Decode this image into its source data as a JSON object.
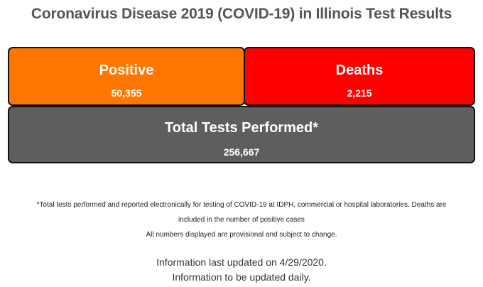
{
  "title": "Coronavirus Disease 2019 (COVID-19) in Illinois Test Results",
  "cards": {
    "positive": {
      "label": "Positive",
      "value": "50,355",
      "color": "#ff7700"
    },
    "deaths": {
      "label": "Deaths",
      "value": "2,215",
      "color": "#ff0000"
    },
    "total": {
      "label": "Total Tests Performed*",
      "value": "256,667",
      "color": "#5e5e5e"
    }
  },
  "footnote": {
    "line1": "*Total tests performed and reported electronically for testing of COVID-19 at IDPH, commercial or hospital laboratories. Deaths are",
    "line2": "included in the number of positive cases",
    "line3": "All numbers displayed are provisional and subject to change."
  },
  "update": {
    "line1": "Information last updated on 4/29/2020.",
    "line2": "Information to be updated daily."
  }
}
